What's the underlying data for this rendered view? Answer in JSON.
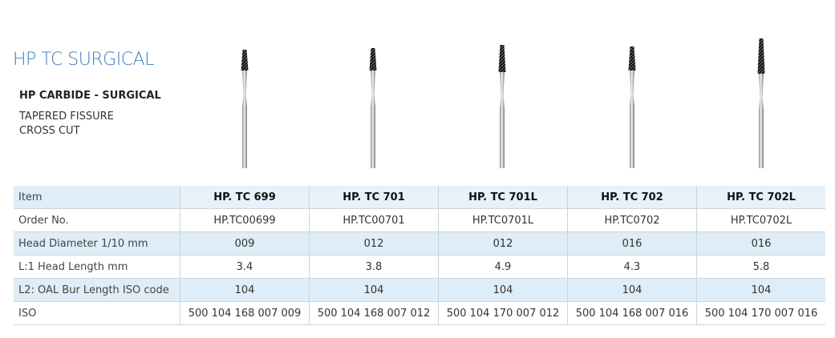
{
  "header": {
    "title": "HP TC SURGICAL",
    "subtitle": "HP CARBIDE - SURGICAL",
    "description": [
      "TAPERED FISSURE",
      "CROSS CUT"
    ]
  },
  "table": {
    "rows": [
      [
        "Item",
        "HP. TC 699",
        "HP. TC 701",
        "HP. TC 701L",
        "HP. TC 702",
        "HP. TC 702L"
      ],
      [
        "Order No.",
        "HP.TC00699",
        "HP.TC00701",
        "HP.TC0701L",
        "HP.TC0702",
        "HP.TC0702L"
      ],
      [
        "Head Diameter 1/10 mm",
        "009",
        "012",
        "012",
        "016",
        "016"
      ],
      [
        "L:1 Head Length mm",
        "3.4",
        "3.8",
        "4.9",
        "4.3",
        "5.8"
      ],
      [
        "L2: OAL Bur Length ISO code",
        "104",
        "104",
        "104",
        "104",
        "104"
      ],
      [
        "ISO",
        "500 104 168 007 009",
        "500 104 168 007 012",
        "500 104 170 007 012",
        "500 104 168 007 016",
        "500 104 170 007 016"
      ]
    ]
  }
}
